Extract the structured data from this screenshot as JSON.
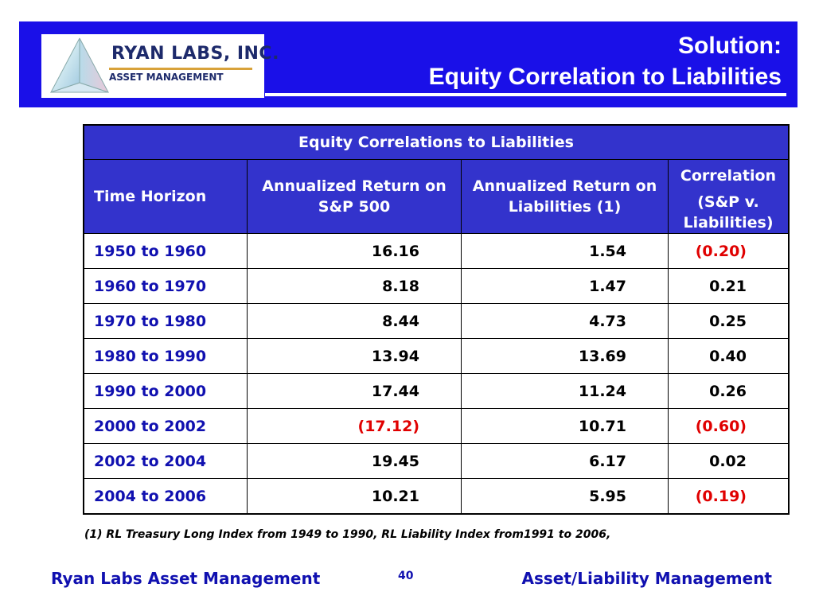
{
  "logo": {
    "name": "RYAN LABS, INC.",
    "subtitle": "ASSET MANAGEMENT"
  },
  "title": {
    "line1": "Solution:",
    "line2": "Equity Correlation to Liabilities"
  },
  "table": {
    "caption": "Equity Correlations to Liabilities",
    "headers": {
      "period": "Time Horizon",
      "sp500": "Annualized Return on S&P 500",
      "liabilities": "Annualized Return on Liabilities (1)",
      "corr_line1": "Correlation",
      "corr_line2": "(S&P v. Liabilities)"
    },
    "rows": [
      {
        "period": "1950 to 1960",
        "sp500": "16.16",
        "liabilities": "1.54",
        "correlation": "(0.20)"
      },
      {
        "period": "1960 to 1970",
        "sp500": "8.18",
        "liabilities": "1.47",
        "correlation": "0.21"
      },
      {
        "period": "1970 to 1980",
        "sp500": "8.44",
        "liabilities": "4.73",
        "correlation": "0.25"
      },
      {
        "period": "1980 to 1990",
        "sp500": "13.94",
        "liabilities": "13.69",
        "correlation": "0.40"
      },
      {
        "period": "1990 to 2000",
        "sp500": "17.44",
        "liabilities": "11.24",
        "correlation": "0.26"
      },
      {
        "period": "2000 to 2002",
        "sp500": "(17.12)",
        "liabilities": "10.71",
        "correlation": "(0.60)"
      },
      {
        "period": "2002 to 2004",
        "sp500": "19.45",
        "liabilities": "6.17",
        "correlation": "0.02"
      },
      {
        "period": "2004 to 2006",
        "sp500": "10.21",
        "liabilities": "5.95",
        "correlation": "(0.19)"
      }
    ]
  },
  "footnote": "(1) RL Treasury Long Index from 1949 to 1990, RL Liability Index from1991 to 2006,",
  "footer": {
    "left": "Ryan Labs Asset Management",
    "page": "40",
    "right": "Asset/Liability Management"
  },
  "colors": {
    "header_band": "#1a10e8",
    "table_header": "#3333cc",
    "period_text": "#1010b0",
    "negative": "#e00000"
  }
}
